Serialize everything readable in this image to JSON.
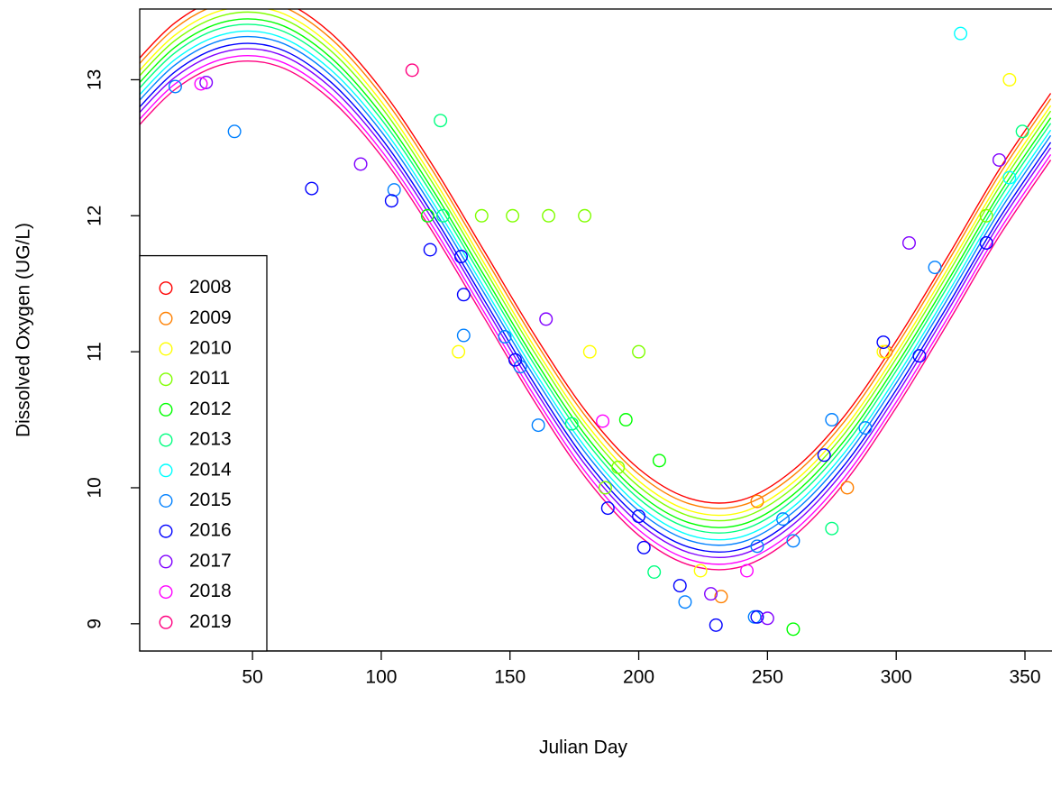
{
  "chart_data": {
    "type": "scatter",
    "x_label": "Julian Day",
    "y_label": "Dissolved Oxygen (UG/L)",
    "xlim": [
      6.2,
      360.5
    ],
    "ylim": [
      8.8,
      13.52
    ],
    "xticks": [
      50,
      100,
      150,
      200,
      250,
      300,
      350
    ],
    "yticks": [
      9,
      10,
      11,
      12,
      13
    ],
    "legend_position": "bottom-left",
    "series": [
      {
        "name": "2008",
        "color": "#FF0000",
        "x": [],
        "values": []
      },
      {
        "name": "2009",
        "color": "#FF8000",
        "x": [
          232,
          246,
          281,
          296
        ],
        "values": [
          9.2,
          9.9,
          10.0,
          11.0
        ]
      },
      {
        "name": "2010",
        "color": "#FFFF00",
        "x": [
          130,
          181,
          224,
          295,
          344
        ],
        "values": [
          11.0,
          11.0,
          9.39,
          11.0,
          13.0
        ]
      },
      {
        "name": "2011",
        "color": "#80FF00",
        "x": [
          139,
          151,
          165,
          179,
          200,
          192,
          187,
          335
        ],
        "values": [
          12.0,
          12.0,
          12.0,
          12.0,
          11.0,
          10.15,
          10.0,
          12.0
        ]
      },
      {
        "name": "2012",
        "color": "#00FF00",
        "x": [
          118,
          195,
          208,
          260
        ],
        "values": [
          12.0,
          10.5,
          10.2,
          8.96
        ]
      },
      {
        "name": "2013",
        "color": "#00FF80",
        "x": [
          123,
          124,
          174,
          206,
          275,
          349
        ],
        "values": [
          12.7,
          12.0,
          10.47,
          9.38,
          9.7,
          12.62
        ]
      },
      {
        "name": "2014",
        "color": "#00FFFF",
        "x": [
          325,
          344
        ],
        "values": [
          13.34,
          12.28
        ]
      },
      {
        "name": "2015",
        "color": "#0080FF",
        "x": [
          20,
          43,
          105,
          132,
          148,
          154,
          161,
          218,
          246,
          245,
          256,
          260,
          275,
          288,
          315
        ],
        "values": [
          12.95,
          12.62,
          12.19,
          11.12,
          11.11,
          10.89,
          10.46,
          9.16,
          9.57,
          9.05,
          9.77,
          9.61,
          10.5,
          10.44,
          11.62
        ]
      },
      {
        "name": "2016",
        "color": "#0000FF",
        "x": [
          73,
          104,
          119,
          131,
          132,
          152,
          188,
          200,
          202,
          216,
          230,
          246,
          272,
          295,
          309,
          335
        ],
        "values": [
          12.2,
          12.11,
          11.75,
          11.7,
          11.42,
          10.94,
          9.85,
          9.79,
          9.56,
          9.28,
          8.99,
          9.05,
          10.24,
          11.07,
          10.97,
          11.8
        ]
      },
      {
        "name": "2017",
        "color": "#8000FF",
        "x": [
          32,
          92,
          164,
          228,
          250,
          305,
          340
        ],
        "values": [
          12.98,
          12.38,
          11.24,
          9.22,
          9.04,
          11.8,
          12.41
        ]
      },
      {
        "name": "2018",
        "color": "#FF00FF",
        "x": [
          30,
          186,
          242
        ],
        "values": [
          12.97,
          10.49,
          9.39
        ]
      },
      {
        "name": "2019",
        "color": "#FF0080",
        "x": [
          112
        ],
        "values": [
          13.07
        ]
      }
    ],
    "fit_x": [
      0,
      20,
      40,
      60,
      80,
      100,
      120,
      140,
      160,
      180,
      200,
      220,
      240,
      260,
      280,
      300,
      320,
      340,
      360
    ],
    "fits": [
      {
        "color": "#FF0000",
        "values": [
          13.03,
          13.42,
          13.61,
          13.59,
          13.35,
          12.93,
          12.37,
          11.74,
          11.11,
          10.55,
          10.14,
          9.92,
          9.91,
          10.13,
          10.53,
          11.08,
          11.7,
          12.34,
          12.9
        ]
      },
      {
        "color": "#FF8000",
        "values": [
          12.99,
          13.38,
          13.57,
          13.55,
          13.31,
          12.89,
          12.33,
          11.7,
          11.07,
          10.51,
          10.1,
          9.88,
          9.87,
          10.09,
          10.49,
          11.04,
          11.66,
          12.3,
          12.86
        ]
      },
      {
        "color": "#FFFF00",
        "values": [
          12.94,
          13.33,
          13.52,
          13.5,
          13.26,
          12.84,
          12.28,
          11.65,
          11.02,
          10.46,
          10.05,
          9.83,
          9.82,
          10.04,
          10.44,
          10.99,
          11.61,
          12.25,
          12.81
        ]
      },
      {
        "color": "#80FF00",
        "values": [
          12.9,
          13.29,
          13.48,
          13.46,
          13.22,
          12.8,
          12.24,
          11.61,
          10.98,
          10.42,
          10.01,
          9.79,
          9.78,
          10.0,
          10.4,
          10.95,
          11.57,
          12.21,
          12.77
        ]
      },
      {
        "color": "#00FF00",
        "values": [
          12.85,
          13.24,
          13.43,
          13.41,
          13.17,
          12.75,
          12.19,
          11.56,
          10.93,
          10.37,
          9.96,
          9.74,
          9.73,
          9.95,
          10.35,
          10.9,
          11.52,
          12.16,
          12.72
        ]
      },
      {
        "color": "#00FF80",
        "values": [
          12.81,
          13.2,
          13.39,
          13.37,
          13.13,
          12.71,
          12.15,
          11.52,
          10.89,
          10.33,
          9.92,
          9.7,
          9.69,
          9.91,
          10.31,
          10.86,
          11.48,
          12.12,
          12.68
        ]
      },
      {
        "color": "#00FFFF",
        "values": [
          12.76,
          13.15,
          13.34,
          13.32,
          13.08,
          12.66,
          12.1,
          11.47,
          10.84,
          10.28,
          9.87,
          9.65,
          9.64,
          9.86,
          10.26,
          10.81,
          11.43,
          12.07,
          12.63
        ]
      },
      {
        "color": "#0080FF",
        "values": [
          12.72,
          13.11,
          13.3,
          13.28,
          13.04,
          12.62,
          12.06,
          11.43,
          10.8,
          10.24,
          9.83,
          9.61,
          9.6,
          9.82,
          10.22,
          10.77,
          11.39,
          12.03,
          12.59
        ]
      },
      {
        "color": "#0000FF",
        "values": [
          12.67,
          13.06,
          13.25,
          13.23,
          12.99,
          12.57,
          12.01,
          11.38,
          10.75,
          10.19,
          9.78,
          9.56,
          9.55,
          9.77,
          10.17,
          10.72,
          11.34,
          11.98,
          12.54
        ]
      },
      {
        "color": "#8000FF",
        "values": [
          12.63,
          13.02,
          13.21,
          13.19,
          12.95,
          12.53,
          11.97,
          11.34,
          10.71,
          10.15,
          9.74,
          9.52,
          9.51,
          9.73,
          10.13,
          10.68,
          11.3,
          11.94,
          12.5
        ]
      },
      {
        "color": "#FF00FF",
        "values": [
          12.58,
          12.97,
          13.16,
          13.14,
          12.9,
          12.48,
          11.92,
          11.29,
          10.66,
          10.1,
          9.69,
          9.47,
          9.46,
          9.68,
          10.08,
          10.63,
          11.25,
          11.89,
          12.45
        ]
      },
      {
        "color": "#FF0080",
        "values": [
          12.54,
          12.93,
          13.12,
          13.1,
          12.86,
          12.44,
          11.88,
          11.25,
          10.62,
          10.06,
          9.65,
          9.43,
          9.42,
          9.64,
          10.04,
          10.59,
          11.21,
          11.85,
          12.41
        ]
      }
    ]
  }
}
